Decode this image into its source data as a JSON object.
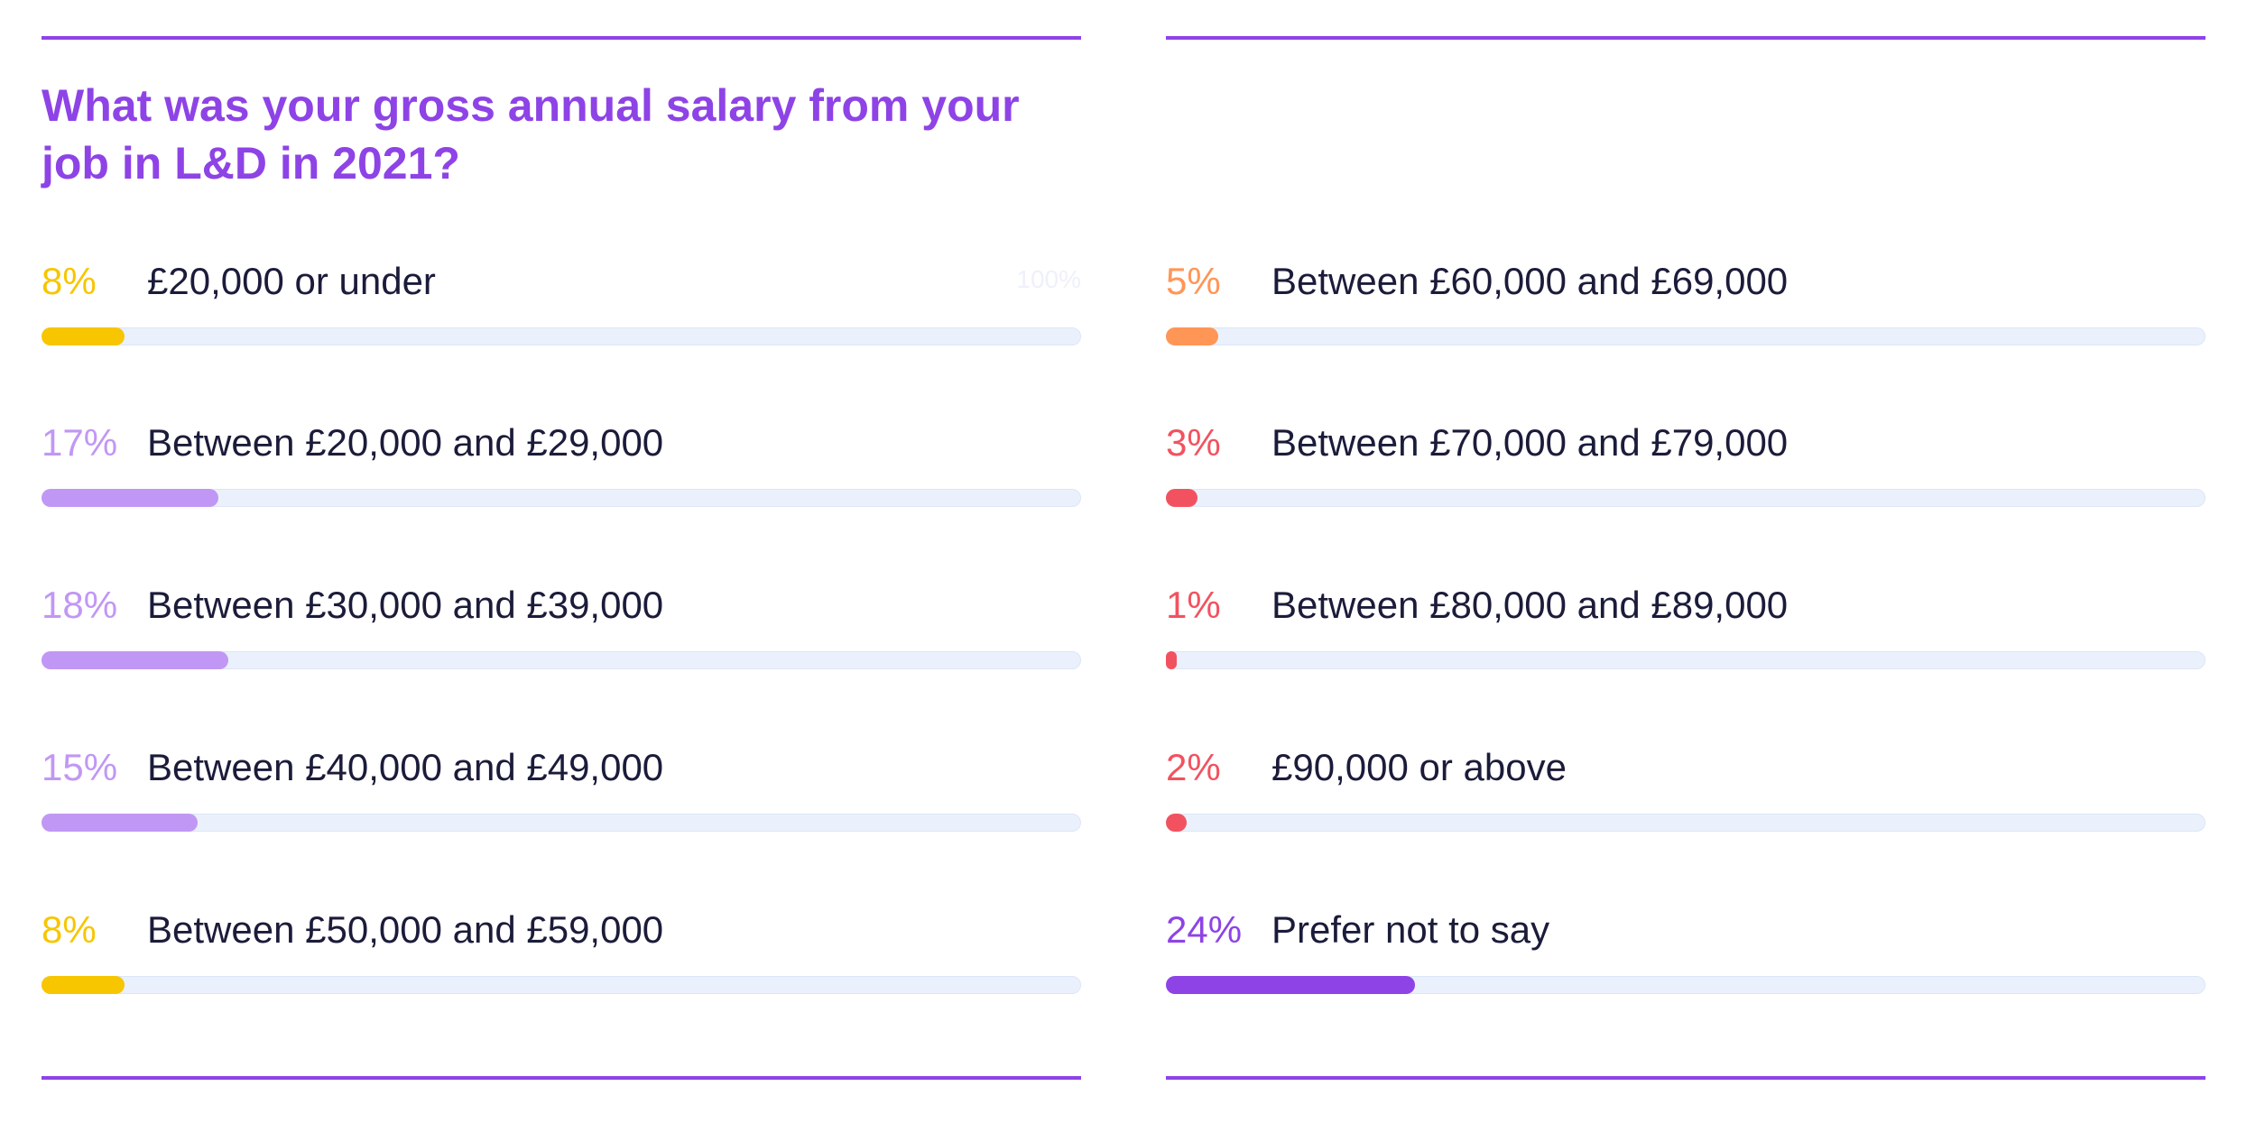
{
  "chart_data": {
    "type": "bar",
    "title": "What was your gross annual salary from your job in L&D in 2021?",
    "xlim": [
      0,
      100
    ],
    "max_label": "100%",
    "columns": [
      {
        "items": [
          {
            "category": "£20,000 or under",
            "value": 8,
            "value_label": "8%",
            "color": "#f7c600"
          },
          {
            "category": "Between £20,000 and £29,000",
            "value": 17,
            "value_label": "17%",
            "color": "#c197f5"
          },
          {
            "category": "Between £30,000 and £39,000",
            "value": 18,
            "value_label": "18%",
            "color": "#c197f5"
          },
          {
            "category": "Between £40,000 and £49,000",
            "value": 15,
            "value_label": "15%",
            "color": "#c197f5"
          },
          {
            "category": "Between £50,000 and £59,000",
            "value": 8,
            "value_label": "8%",
            "color": "#f7c600"
          }
        ]
      },
      {
        "items": [
          {
            "category": "Between £60,000 and £69,000",
            "value": 5,
            "value_label": "5%",
            "color": "#ff9656"
          },
          {
            "category": "Between £70,000 and £79,000",
            "value": 3,
            "value_label": "3%",
            "color": "#f2525f"
          },
          {
            "category": "Between £80,000 and £89,000",
            "value": 1,
            "value_label": "1%",
            "color": "#f2525f"
          },
          {
            "category": "£90,000 or above",
            "value": 2,
            "value_label": "2%",
            "color": "#f2525f"
          },
          {
            "category": "Prefer not to say",
            "value": 24,
            "value_label": "24%",
            "color": "#8e43e6"
          }
        ]
      }
    ]
  }
}
